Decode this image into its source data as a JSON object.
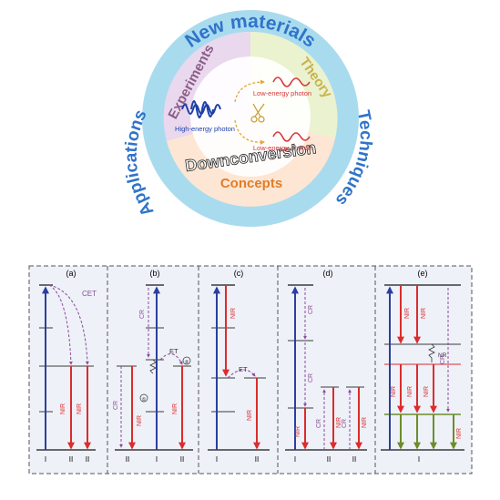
{
  "top_diagram": {
    "ring_words": {
      "top": "New materials",
      "right": "Techniques",
      "left": "Applications"
    },
    "sectors": {
      "experiments": "Experiments",
      "theory": "Theory",
      "downconversion": "Downconversion",
      "concepts": "Concepts"
    },
    "photons": {
      "high": "High-energy photon",
      "low_upper": "Low-energy photon",
      "low_lower": "Low-energy photon"
    },
    "colors": {
      "ring": "#a9dbef",
      "ring_text": "#2f74c9",
      "experiments_bg": "#e9d8ee",
      "theory_bg": "#eaf2cf",
      "concepts_bg": "#fde6d3",
      "wave_blue": "#1c3fa8",
      "wave_red": "#d63636",
      "concepts_text": "#e07d2a",
      "theory_text": "#c9b24d",
      "experiments_text": "#8a5d88"
    }
  },
  "energy_panels": {
    "panels": [
      {
        "id": "(a)",
        "labels": [
          "CET",
          "NIR",
          "NIR"
        ],
        "ions": [
          "I",
          "II",
          "II"
        ]
      },
      {
        "id": "(b)",
        "labels": [
          "CR",
          "ET",
          "NIR",
          "CR",
          "NIR",
          "①",
          "②"
        ],
        "ions": [
          "II",
          "I",
          "II"
        ]
      },
      {
        "id": "(c)",
        "labels": [
          "NIR",
          "ET",
          "NIR"
        ],
        "ions": [
          "I",
          "II"
        ]
      },
      {
        "id": "(d)",
        "labels": [
          "CR",
          "CR",
          "NIR",
          "CR",
          "NIR",
          "CR",
          "NIR"
        ],
        "ions": [
          "I",
          "II",
          "II"
        ]
      },
      {
        "id": "(e)",
        "labels": [
          "NIR",
          "NIR",
          "NR",
          "CR",
          "NIR",
          "NIR",
          "NIR",
          "NIR"
        ],
        "ions": [
          "I"
        ]
      }
    ],
    "colors": {
      "blue": "#2b3f9e",
      "red": "#dc2c2c",
      "purple": "#8a4c9a",
      "green": "#6c8d2a",
      "panel_border": "#555555",
      "level": "#3a3a3a"
    }
  }
}
